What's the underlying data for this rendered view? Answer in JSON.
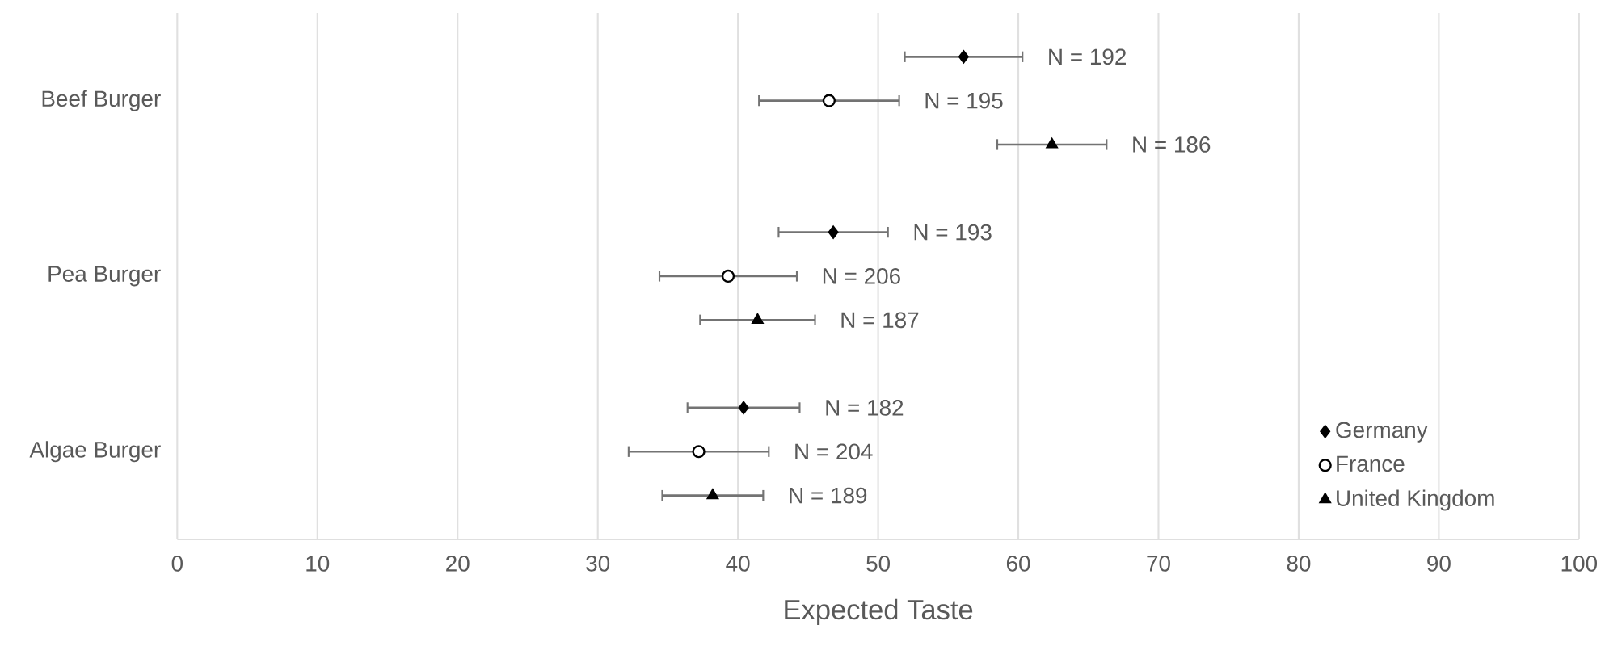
{
  "chart_data": {
    "type": "scatter",
    "orientation": "horizontal",
    "xlabel": "Expected Taste",
    "categories": [
      "Beef Burger",
      "Pea Burger",
      "Algae Burger"
    ],
    "series": [
      {
        "name": "Germany",
        "color": "#000000",
        "marker": "diamond",
        "values": [
          56.1,
          46.8,
          40.4
        ],
        "errors": [
          4.2,
          3.9,
          4.0
        ]
      },
      {
        "name": "France",
        "color": "#000000",
        "marker": "circle",
        "values": [
          46.5,
          39.3,
          37.2
        ],
        "errors": [
          5.0,
          4.9,
          5.0
        ]
      },
      {
        "name": "United Kingdom",
        "color": "#000000",
        "marker": "triangle",
        "values": [
          62.4,
          41.4,
          38.2
        ],
        "errors": [
          3.9,
          4.1,
          3.6
        ]
      }
    ],
    "annotations": [
      "N = 192",
      "N = 193",
      "N = 182",
      "N = 195",
      "N = 206",
      "N = 204",
      "N = 186",
      "N = 187",
      "N = 189"
    ],
    "xlim": [
      0,
      100
    ],
    "xticks": [
      0,
      10,
      20,
      30,
      40,
      50,
      60,
      70,
      80,
      90,
      100
    ],
    "grid": "x",
    "legend": "bottom right"
  }
}
